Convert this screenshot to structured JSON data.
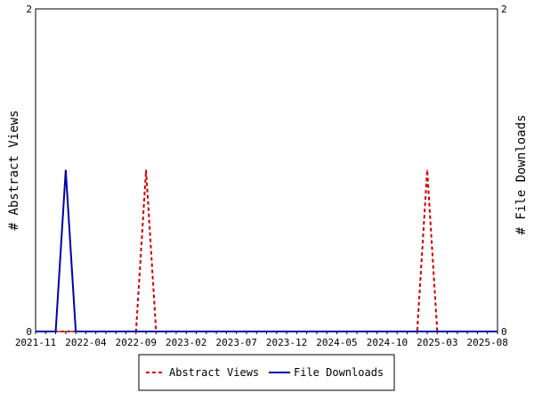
{
  "chart_data": {
    "type": "line",
    "x": [
      "2021-11",
      "2021-12",
      "2022-01",
      "2022-02",
      "2022-03",
      "2022-04",
      "2022-05",
      "2022-06",
      "2022-07",
      "2022-08",
      "2022-09",
      "2022-10",
      "2022-11",
      "2022-12",
      "2023-01",
      "2023-02",
      "2023-03",
      "2023-04",
      "2023-05",
      "2023-06",
      "2023-07",
      "2023-08",
      "2023-09",
      "2023-10",
      "2023-11",
      "2023-12",
      "2024-01",
      "2024-02",
      "2024-03",
      "2024-04",
      "2024-05",
      "2024-06",
      "2024-07",
      "2024-08",
      "2024-09",
      "2024-10",
      "2024-11",
      "2024-12",
      "2025-01",
      "2025-02",
      "2025-03",
      "2025-04",
      "2025-05",
      "2025-06",
      "2025-07",
      "2025-08",
      "2025-09"
    ],
    "x_tick_labels": [
      "2021-11",
      "2022-04",
      "2022-09",
      "2023-02",
      "2023-07",
      "2023-12",
      "2024-05",
      "2024-10",
      "2025-03",
      "2025-08"
    ],
    "series": [
      {
        "name": "Abstract Views",
        "color": "#cc0000",
        "dash": true,
        "axis": "left",
        "values": [
          0,
          0,
          0,
          0,
          0,
          0,
          0,
          0,
          0,
          0,
          0,
          1,
          0,
          0,
          0,
          0,
          0,
          0,
          0,
          0,
          0,
          0,
          0,
          0,
          0,
          0,
          0,
          0,
          0,
          0,
          0,
          0,
          0,
          0,
          0,
          0,
          0,
          0,
          0,
          1,
          0,
          0,
          0,
          0,
          0,
          0,
          0
        ]
      },
      {
        "name": "File Downloads",
        "color": "#0000aa",
        "dash": false,
        "axis": "right",
        "values": [
          0,
          0,
          0,
          1,
          0,
          0,
          0,
          0,
          0,
          0,
          0,
          0,
          0,
          0,
          0,
          0,
          0,
          0,
          0,
          0,
          0,
          0,
          0,
          0,
          0,
          0,
          0,
          0,
          0,
          0,
          0,
          0,
          0,
          0,
          0,
          0,
          0,
          0,
          0,
          0,
          0,
          0,
          0,
          0,
          0,
          0,
          0
        ]
      }
    ],
    "ylabel": "# Abstract Views",
    "y2label": "# File Downloads",
    "ylim": [
      0,
      2
    ],
    "y2lim": [
      0,
      2
    ],
    "y_ticks": [
      "0",
      "2"
    ],
    "y2_ticks": [
      "0",
      "2"
    ],
    "grid": false,
    "legend": "bottom"
  }
}
